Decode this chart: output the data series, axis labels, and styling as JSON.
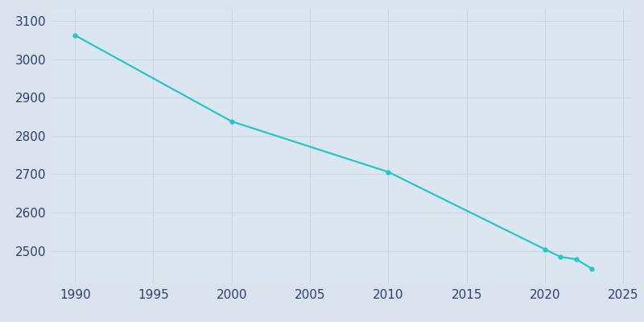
{
  "years": [
    1990,
    2000,
    2010,
    2020,
    2021,
    2022,
    2023
  ],
  "population": [
    3063,
    2838,
    2706,
    2504,
    2484,
    2478,
    2453
  ],
  "line_color": "#26C6C6",
  "marker_color": "#26C6C6",
  "bg_color": "#D9E2ED",
  "axes_bg_color": "#DCE6F0",
  "grid_color": "#C8D5E3",
  "tick_color": "#2E4070",
  "xlim": [
    1988.5,
    2025.5
  ],
  "ylim": [
    2415,
    3130
  ],
  "xticks": [
    1990,
    1995,
    2000,
    2005,
    2010,
    2015,
    2020,
    2025
  ],
  "yticks": [
    2500,
    2600,
    2700,
    2800,
    2900,
    3000,
    3100
  ]
}
